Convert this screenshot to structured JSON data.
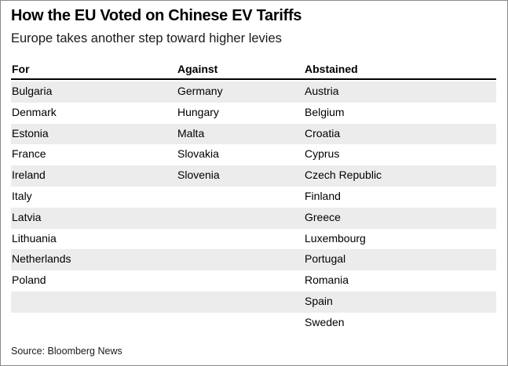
{
  "title": "How the EU Voted on Chinese EV Tariffs",
  "subtitle": "Europe takes another step toward higher levies",
  "columns": [
    "For",
    "Against",
    "Abstained"
  ],
  "rows": [
    [
      "Bulgaria",
      "Germany",
      "Austria"
    ],
    [
      "Denmark",
      "Hungary",
      "Belgium"
    ],
    [
      "Estonia",
      "Malta",
      "Croatia"
    ],
    [
      "France",
      "Slovakia",
      "Cyprus"
    ],
    [
      "Ireland",
      "Slovenia",
      "Czech Republic"
    ],
    [
      "Italy",
      "",
      "Finland"
    ],
    [
      "Latvia",
      "",
      "Greece"
    ],
    [
      "Lithuania",
      "",
      "Luxembourg"
    ],
    [
      "Netherlands",
      "",
      "Portugal"
    ],
    [
      "Poland",
      "",
      "Romania"
    ],
    [
      "",
      "",
      "Spain"
    ],
    [
      "",
      "",
      "Sweden"
    ]
  ],
  "source": "Source: Bloomberg News",
  "colors": {
    "stripe": "#ececec",
    "rule": "#000000",
    "border": "#8a8a8a"
  }
}
